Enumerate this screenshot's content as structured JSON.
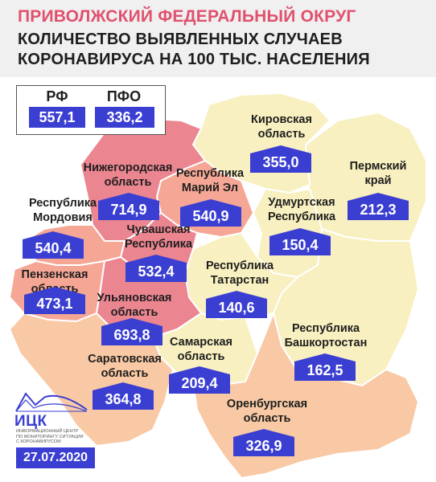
{
  "header": {
    "title_line1": "ПРИВОЛЖСКИЙ ФЕДЕРАЛЬНЫЙ ОКРУГ",
    "title_line2": "КОЛИЧЕСТВО ВЫЯВЛЕННЫХ СЛУЧАЕВ",
    "title_line3": "КОРОНАВИРУСА НА 100 ТЫС. НАСЕЛЕНИЯ"
  },
  "legend": {
    "rf_label": "РФ",
    "rf_value": "557,1",
    "pfo_label": "ПФО",
    "pfo_value": "336,2"
  },
  "regions": [
    {
      "name_l1": "Кировская",
      "name_l2": "область",
      "value": "355,0"
    },
    {
      "name_l1": "Пермский",
      "name_l2": "край",
      "value": "212,3"
    },
    {
      "name_l1": "Нижегородская",
      "name_l2": "область",
      "value": "714,9"
    },
    {
      "name_l1": "Республика",
      "name_l2": "Марий Эл",
      "value": "540,9"
    },
    {
      "name_l1": "Удмуртская",
      "name_l2": "Республика",
      "value": "150,4"
    },
    {
      "name_l1": "Республика",
      "name_l2": "Мордовия",
      "value": "540,4"
    },
    {
      "name_l1": "Чувашская",
      "name_l2": "Республика",
      "value": "532,4"
    },
    {
      "name_l1": "Пензенская",
      "name_l2": "область",
      "value": "473,1"
    },
    {
      "name_l1": "Республика",
      "name_l2": "Татарстан",
      "value": "140,6"
    },
    {
      "name_l1": "Ульяновская",
      "name_l2": "область",
      "value": "693,8"
    },
    {
      "name_l1": "Республика",
      "name_l2": "Башкортостан",
      "value": "162,5"
    },
    {
      "name_l1": "Самарская",
      "name_l2": "область",
      "value": "209,4"
    },
    {
      "name_l1": "Саратовская",
      "name_l2": "область",
      "value": "364,8"
    },
    {
      "name_l1": "Оренбургская",
      "name_l2": "область",
      "value": "326,9"
    }
  ],
  "logo": {
    "name": "ИЦК",
    "subtitle": "ИНФОРМАЦИОННЫЙ ЦЕНТР\nПО МОНИТОРИНГУ СИТУАЦИИ\nС КОРОНАВИРУСОМ"
  },
  "date": "27.07.2020",
  "colors": {
    "accent_blue": "#3b3fd1",
    "title_pink": "#e0516e",
    "high": "#eb8590",
    "mid": "#f5a694",
    "low_orange": "#f8c9a4",
    "low_yellow": "#f8f0c0"
  }
}
